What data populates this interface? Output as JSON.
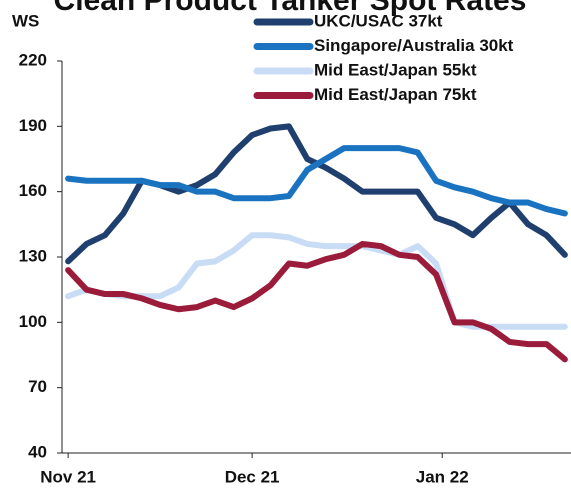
{
  "chart_data": {
    "type": "line",
    "title": "Clean Product Tanker Spot Rates",
    "ylabel": "WS",
    "x": [
      0,
      3,
      6,
      9,
      12,
      15,
      18,
      21,
      24,
      27,
      30,
      33,
      36,
      39,
      42,
      45,
      48,
      51,
      54,
      57,
      60,
      63,
      66,
      69,
      72,
      75,
      78,
      81
    ],
    "xlim": [
      -1,
      82
    ],
    "xticks": [
      {
        "value": 0,
        "label": "Nov 21"
      },
      {
        "value": 30,
        "label": "Dec 21"
      },
      {
        "value": 61,
        "label": "Jan 22"
      }
    ],
    "ylim": [
      40,
      220
    ],
    "yticks": [
      40,
      70,
      100,
      130,
      160,
      190,
      220
    ],
    "series": [
      {
        "name": "UKC/USAC 37kt",
        "color": "#1f3f6e",
        "values": [
          128,
          136,
          140,
          150,
          165,
          163,
          160,
          163,
          168,
          178,
          186,
          189,
          190,
          175,
          171,
          166,
          160,
          160,
          160,
          160,
          148,
          145,
          140,
          148,
          155,
          145,
          140,
          131
        ]
      },
      {
        "name": "Singapore/Australia 30kt",
        "color": "#1a73c0",
        "values": [
          166,
          165,
          165,
          165,
          165,
          163,
          163,
          160,
          160,
          157,
          157,
          157,
          158,
          170,
          175,
          180,
          180,
          180,
          180,
          178,
          165,
          162,
          160,
          157,
          155,
          155,
          152,
          150
        ]
      },
      {
        "name": "Mid East/Japan 55kt",
        "color": "#c9dcf5",
        "values": [
          112,
          115,
          113,
          112,
          112,
          112,
          116,
          127,
          128,
          133,
          140,
          140,
          139,
          136,
          135,
          135,
          135,
          133,
          131,
          135,
          127,
          100,
          98,
          98,
          98,
          98,
          98,
          98
        ]
      },
      {
        "name": "Mid East/Japan 75kt",
        "color": "#9b1b3a",
        "values": [
          124,
          115,
          113,
          113,
          111,
          108,
          106,
          107,
          110,
          107,
          111,
          117,
          127,
          126,
          129,
          131,
          136,
          135,
          131,
          130,
          122,
          100,
          100,
          97,
          91,
          90,
          90,
          83
        ]
      }
    ]
  }
}
